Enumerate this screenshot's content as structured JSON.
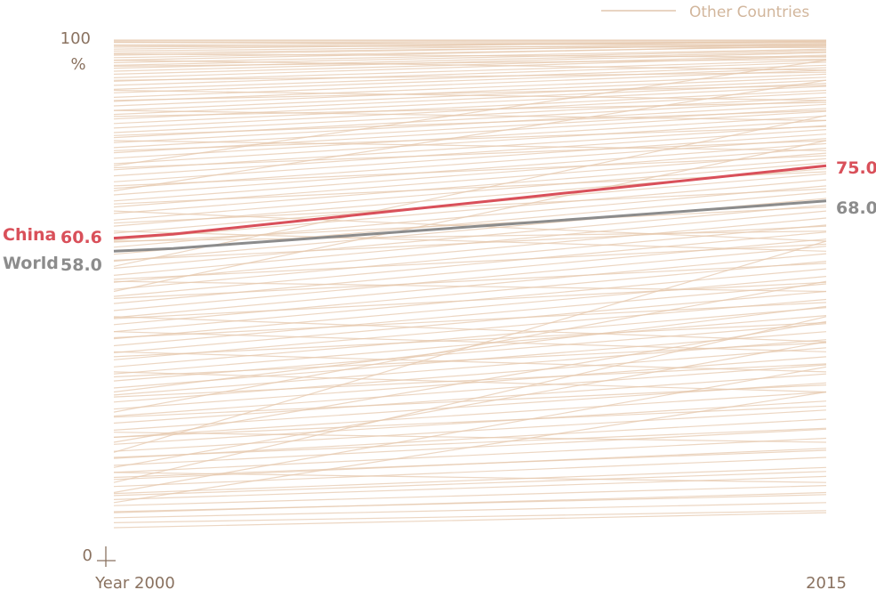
{
  "chart_data": {
    "type": "line",
    "x": [
      "Year 2000",
      "2015"
    ],
    "y_axis": {
      "top_label": "100",
      "unit_label": "%",
      "bottom_label": "0",
      "ylim": [
        0,
        100
      ]
    },
    "legend": {
      "label": "Other Countries",
      "position": "top-right"
    },
    "series": [
      {
        "name": "China",
        "values": [
          60.6,
          75.0
        ],
        "start_label": "60.6",
        "end_label": "75.0",
        "color": "#d9505a"
      },
      {
        "name": "World",
        "values": [
          58.0,
          68.0
        ],
        "start_label": "58.0",
        "end_label": "68.0",
        "color": "#8c8c8c"
      }
    ],
    "other_countries_color": "#e6c8ae",
    "other_countries": [
      [
        99.8,
        99.9
      ],
      [
        99.5,
        99.7
      ],
      [
        99.0,
        99.6
      ],
      [
        98.6,
        99.5
      ],
      [
        98.2,
        99.8
      ],
      [
        97.8,
        99.3
      ],
      [
        97.4,
        99.0
      ],
      [
        97.0,
        99.2
      ],
      [
        96.5,
        98.7
      ],
      [
        96.0,
        98.9
      ],
      [
        95.5,
        98.2
      ],
      [
        95.0,
        98.0
      ],
      [
        94.4,
        97.7
      ],
      [
        93.8,
        97.5
      ],
      [
        93.2,
        97.0
      ],
      [
        92.5,
        96.8
      ],
      [
        91.8,
        96.0
      ],
      [
        91.0,
        95.6
      ],
      [
        90.2,
        95.0
      ],
      [
        89.5,
        94.5
      ],
      [
        88.6,
        94.0
      ],
      [
        87.8,
        93.2
      ],
      [
        86.9,
        92.6
      ],
      [
        86.0,
        92.0
      ],
      [
        85.2,
        91.4
      ],
      [
        84.3,
        90.8
      ],
      [
        83.4,
        90.0
      ],
      [
        82.5,
        89.5
      ],
      [
        81.6,
        88.6
      ],
      [
        80.6,
        88.0
      ],
      [
        79.6,
        87.2
      ],
      [
        78.6,
        86.4
      ],
      [
        77.6,
        85.8
      ],
      [
        76.5,
        84.9
      ],
      [
        75.4,
        84.0
      ],
      [
        74.2,
        83.0
      ],
      [
        73.0,
        82.2
      ],
      [
        71.8,
        81.3
      ],
      [
        70.5,
        80.4
      ],
      [
        69.2,
        79.4
      ],
      [
        68.0,
        78.5
      ],
      [
        66.8,
        77.5
      ],
      [
        65.5,
        76.4
      ],
      [
        64.2,
        75.6
      ],
      [
        63.0,
        74.4
      ],
      [
        61.6,
        73.4
      ],
      [
        60.2,
        72.2
      ],
      [
        58.8,
        71.0
      ],
      [
        57.4,
        69.8
      ],
      [
        56.0,
        68.5
      ],
      [
        54.6,
        67.2
      ],
      [
        53.2,
        66.0
      ],
      [
        51.8,
        64.6
      ],
      [
        50.4,
        63.2
      ],
      [
        49.0,
        61.8
      ],
      [
        47.6,
        60.4
      ],
      [
        46.2,
        59.0
      ],
      [
        44.8,
        57.5
      ],
      [
        43.4,
        56.0
      ],
      [
        42.0,
        54.5
      ],
      [
        40.6,
        53.0
      ],
      [
        39.2,
        51.5
      ],
      [
        37.8,
        50.0
      ],
      [
        36.4,
        48.4
      ],
      [
        35.0,
        46.8
      ],
      [
        33.6,
        45.2
      ],
      [
        32.2,
        43.6
      ],
      [
        30.8,
        42.0
      ],
      [
        29.4,
        40.4
      ],
      [
        28.0,
        38.8
      ],
      [
        26.6,
        37.0
      ],
      [
        25.2,
        35.4
      ],
      [
        23.8,
        33.6
      ],
      [
        22.4,
        31.8
      ],
      [
        21.0,
        30.0
      ],
      [
        19.6,
        28.2
      ],
      [
        18.2,
        26.4
      ],
      [
        16.8,
        24.6
      ],
      [
        15.4,
        22.6
      ],
      [
        14.0,
        20.8
      ],
      [
        12.6,
        18.8
      ],
      [
        11.2,
        17.0
      ],
      [
        9.8,
        15.0
      ],
      [
        8.6,
        13.2
      ],
      [
        7.4,
        11.4
      ],
      [
        6.2,
        9.6
      ],
      [
        5.0,
        8.0
      ],
      [
        4.0,
        6.4
      ],
      [
        99.6,
        98.9
      ],
      [
        98.9,
        98.5
      ],
      [
        97.2,
        96.6
      ],
      [
        94.8,
        96.2
      ],
      [
        92.0,
        93.6
      ],
      [
        88.0,
        91.0
      ],
      [
        84.8,
        87.6
      ],
      [
        81.0,
        86.0
      ],
      [
        78.0,
        82.8
      ],
      [
        74.6,
        80.0
      ],
      [
        71.0,
        77.0
      ],
      [
        67.4,
        73.8
      ],
      [
        63.6,
        70.4
      ],
      [
        59.8,
        66.8
      ],
      [
        56.2,
        63.0
      ],
      [
        52.4,
        59.4
      ],
      [
        48.6,
        55.6
      ],
      [
        44.6,
        51.8
      ],
      [
        40.8,
        47.8
      ],
      [
        37.0,
        43.8
      ],
      [
        33.0,
        39.8
      ],
      [
        29.0,
        35.6
      ],
      [
        25.0,
        31.4
      ],
      [
        21.0,
        27.2
      ],
      [
        17.0,
        22.8
      ],
      [
        13.0,
        18.4
      ],
      [
        9.4,
        14.2
      ],
      [
        6.0,
        10.0
      ],
      [
        3.0,
        6.0
      ],
      [
        62.0,
        58.0
      ],
      [
        66.0,
        60.0
      ],
      [
        45.0,
        40.0
      ],
      [
        38.0,
        34.0
      ],
      [
        30.0,
        47.0
      ],
      [
        20.0,
        44.0
      ],
      [
        15.0,
        40.0
      ],
      [
        10.0,
        35.0
      ],
      [
        26.0,
        52.0
      ],
      [
        8.0,
        30.0
      ],
      [
        12.0,
        45.0
      ],
      [
        18.0,
        60.0
      ],
      [
        55.0,
        85.0
      ],
      [
        50.0,
        80.0
      ],
      [
        70.0,
        92.0
      ],
      [
        75.0,
        96.0
      ],
      [
        34.0,
        30.0
      ],
      [
        22.0,
        20.0
      ],
      [
        14.0,
        12.0
      ],
      [
        42.0,
        38.0
      ],
      [
        52.0,
        50.0
      ],
      [
        60.0,
        62.0
      ],
      [
        80.0,
        78.0
      ],
      [
        86.0,
        84.0
      ],
      [
        90.0,
        88.0
      ],
      [
        96.0,
        94.0
      ],
      [
        100.0,
        100.0
      ]
    ]
  }
}
